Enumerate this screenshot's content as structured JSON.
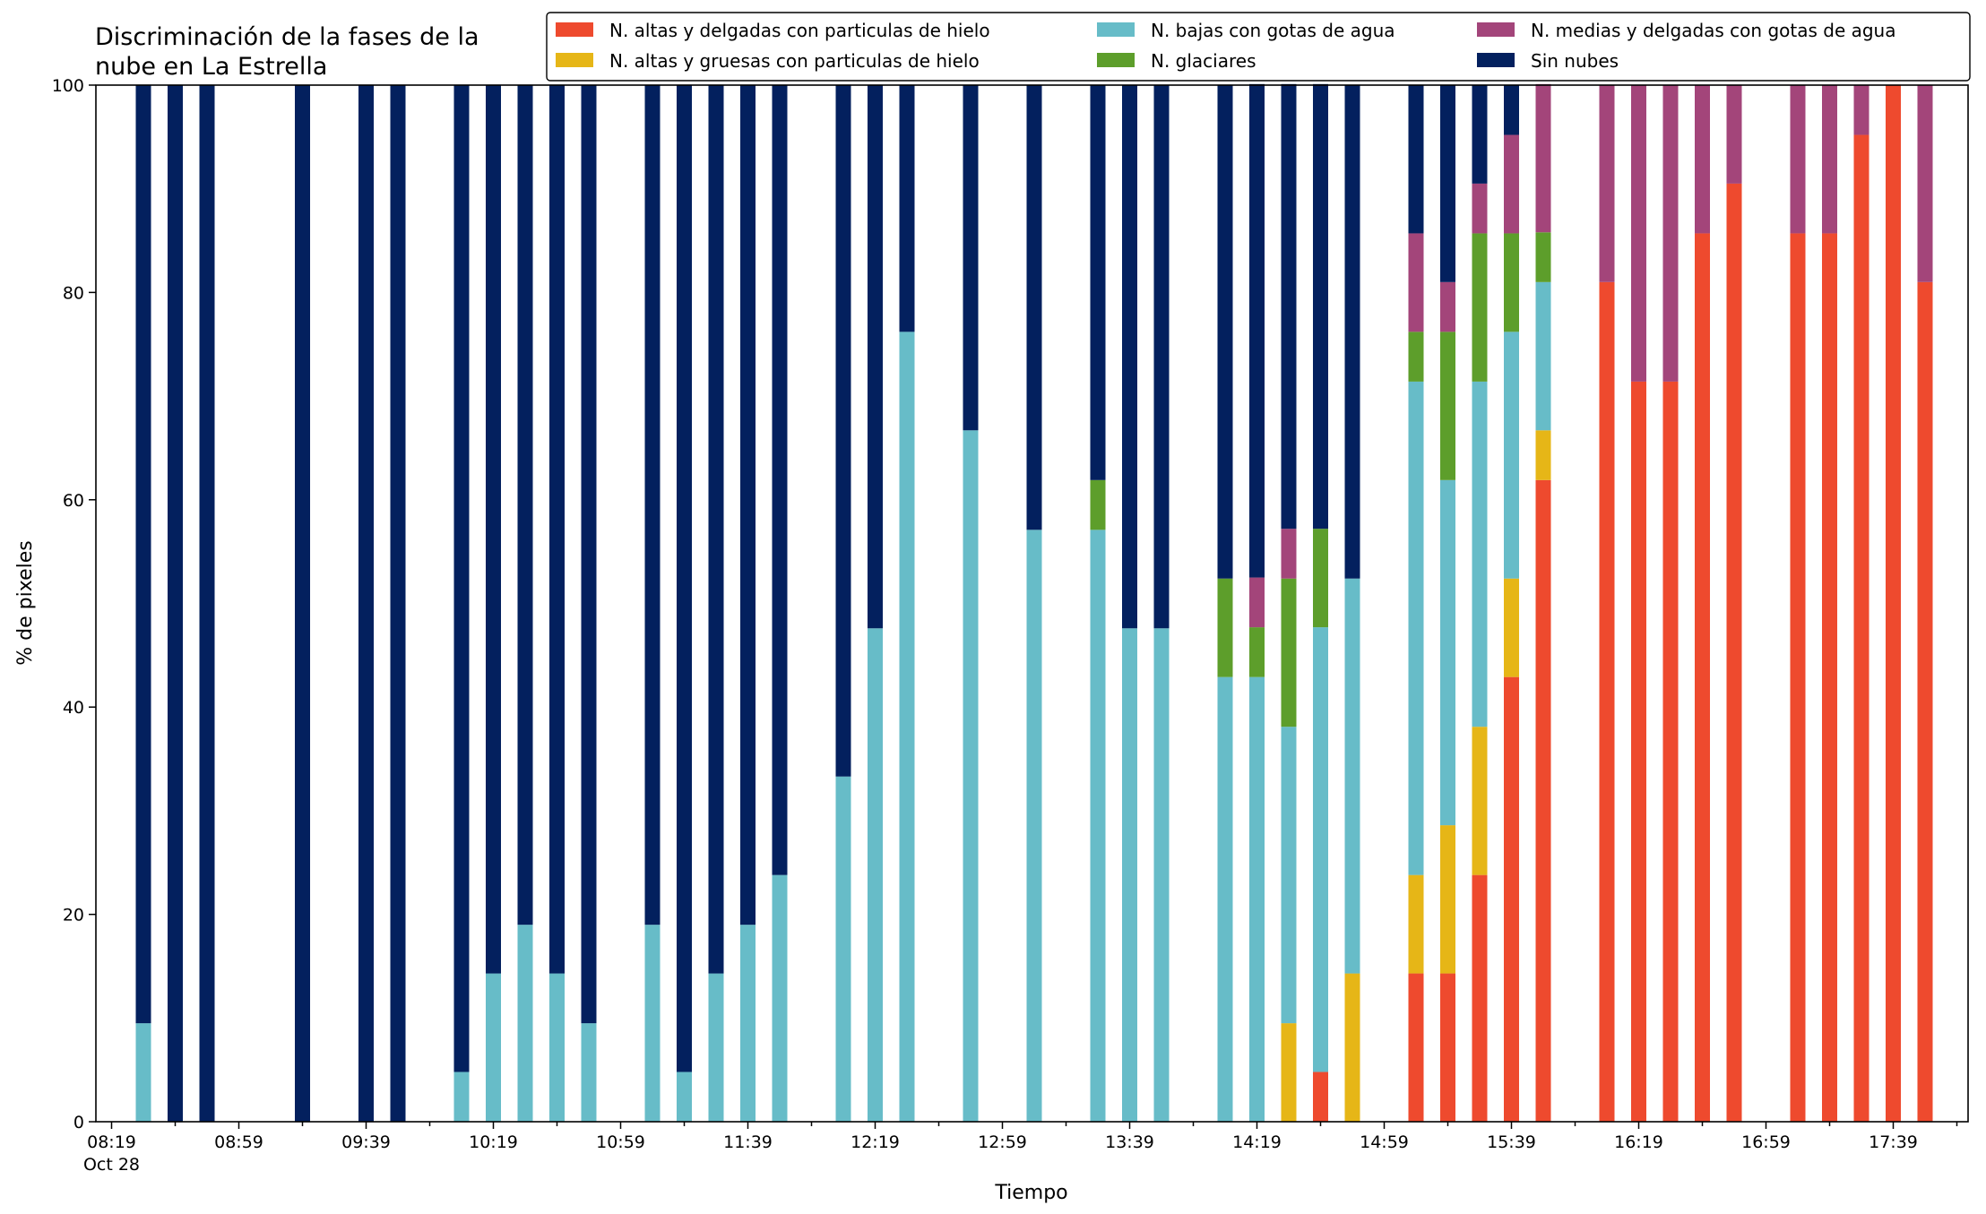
{
  "chart_data": {
    "type": "bar",
    "stacked": true,
    "title": [
      "Discriminación de la fases de la",
      "nube en La Estrella"
    ],
    "xlabel": "Tiempo",
    "ylabel": "% de pixeles",
    "ylim": [
      0,
      100
    ],
    "yticks": [
      "0",
      "20",
      "40",
      "60",
      "80",
      "100"
    ],
    "xticks": [
      "08:19",
      "08:59",
      "09:39",
      "10:19",
      "10:59",
      "11:39",
      "12:19",
      "12:59",
      "13:39",
      "14:19",
      "14:59",
      "15:39",
      "16:19",
      "16:59",
      "17:39"
    ],
    "xtick_sublabel": "Oct 28",
    "x_unit": "time of day (HH:MM), 10-minute observations",
    "legend_position": "top-right",
    "grid": false,
    "x": [
      "08:29",
      "08:39",
      "08:49",
      "09:19",
      "09:39",
      "09:49",
      "10:09",
      "10:19",
      "10:29",
      "10:39",
      "10:49",
      "11:09",
      "11:19",
      "11:29",
      "11:39",
      "11:49",
      "12:09",
      "12:19",
      "12:29",
      "12:49",
      "13:09",
      "13:29",
      "13:39",
      "13:49",
      "14:09",
      "14:19",
      "14:29",
      "14:39",
      "14:49",
      "15:09",
      "15:19",
      "15:29",
      "15:39",
      "15:49",
      "16:09",
      "16:19",
      "16:29",
      "16:39",
      "16:49",
      "17:09",
      "17:19",
      "17:29",
      "17:39",
      "17:49"
    ],
    "series": [
      {
        "name": "N. altas y delgadas con particulas de hielo",
        "color": "#ee4a2e",
        "values": [
          0,
          0,
          0,
          0,
          0,
          0,
          0,
          0,
          0,
          0,
          0,
          0,
          0,
          0,
          0,
          0,
          0,
          0,
          0,
          0,
          0,
          0,
          0,
          0,
          0,
          0,
          0,
          4.8,
          0,
          14.3,
          14.3,
          23.8,
          42.9,
          61.9,
          81,
          71.4,
          71.4,
          85.7,
          90.5,
          85.7,
          85.7,
          95.2,
          100,
          81
        ]
      },
      {
        "name": "N. altas y gruesas con particulas de hielo",
        "color": "#e6b617",
        "values": [
          0,
          0,
          0,
          0,
          0,
          0,
          0,
          0,
          0,
          0,
          0,
          0,
          0,
          0,
          0,
          0,
          0,
          0,
          0,
          0,
          0,
          0,
          0,
          0,
          0,
          0,
          9.5,
          0,
          14.3,
          9.5,
          14.3,
          14.3,
          9.5,
          4.8,
          0,
          0,
          0,
          0,
          0,
          0,
          0,
          0,
          0,
          0
        ]
      },
      {
        "name": "N. bajas con gotas de agua",
        "color": "#67bcc8",
        "values": [
          9.5,
          0,
          0,
          0,
          0,
          0,
          4.8,
          14.3,
          19,
          14.3,
          9.5,
          19,
          4.8,
          14.3,
          19,
          23.8,
          33.3,
          47.6,
          76.2,
          66.7,
          57.1,
          57.1,
          47.6,
          47.6,
          42.9,
          42.9,
          28.6,
          42.9,
          38.1,
          47.6,
          33.3,
          33.3,
          23.8,
          14.3,
          0,
          0,
          0,
          0,
          0,
          0,
          0,
          0,
          0,
          0
        ]
      },
      {
        "name": "N. glaciares",
        "color": "#5d9e2b",
        "values": [
          0,
          0,
          0,
          0,
          0,
          0,
          0,
          0,
          0,
          0,
          0,
          0,
          0,
          0,
          0,
          0,
          0,
          0,
          0,
          0,
          0,
          4.8,
          0,
          0,
          9.5,
          4.8,
          14.3,
          9.5,
          0,
          4.8,
          14.3,
          14.3,
          9.5,
          4.8,
          0,
          0,
          0,
          0,
          0,
          0,
          0,
          0,
          0,
          0
        ]
      },
      {
        "name": "N. medias y delgadas con gotas de agua",
        "color": "#a3457a",
        "values": [
          0,
          0,
          0,
          0,
          0,
          0,
          0,
          0,
          0,
          0,
          0,
          0,
          0,
          0,
          0,
          0,
          0,
          0,
          0,
          0,
          0,
          0,
          0,
          0,
          0,
          4.8,
          4.8,
          0,
          0,
          9.5,
          4.8,
          4.8,
          9.5,
          14.3,
          19,
          28.6,
          28.6,
          14.3,
          9.5,
          14.3,
          14.3,
          4.8,
          0,
          19
        ]
      },
      {
        "name": "Sin nubes",
        "color": "#03205e",
        "values": [
          90.5,
          100,
          100,
          100,
          100,
          100,
          95.2,
          85.7,
          81,
          85.7,
          90.5,
          81,
          95.2,
          85.7,
          81,
          76.2,
          66.7,
          52.4,
          23.8,
          33.3,
          42.9,
          38.1,
          52.4,
          52.4,
          47.6,
          47.6,
          42.9,
          42.9,
          47.6,
          14.3,
          19,
          9.5,
          4.8,
          0,
          0,
          0,
          0,
          0,
          0,
          0,
          0,
          0,
          0,
          0
        ]
      }
    ]
  }
}
